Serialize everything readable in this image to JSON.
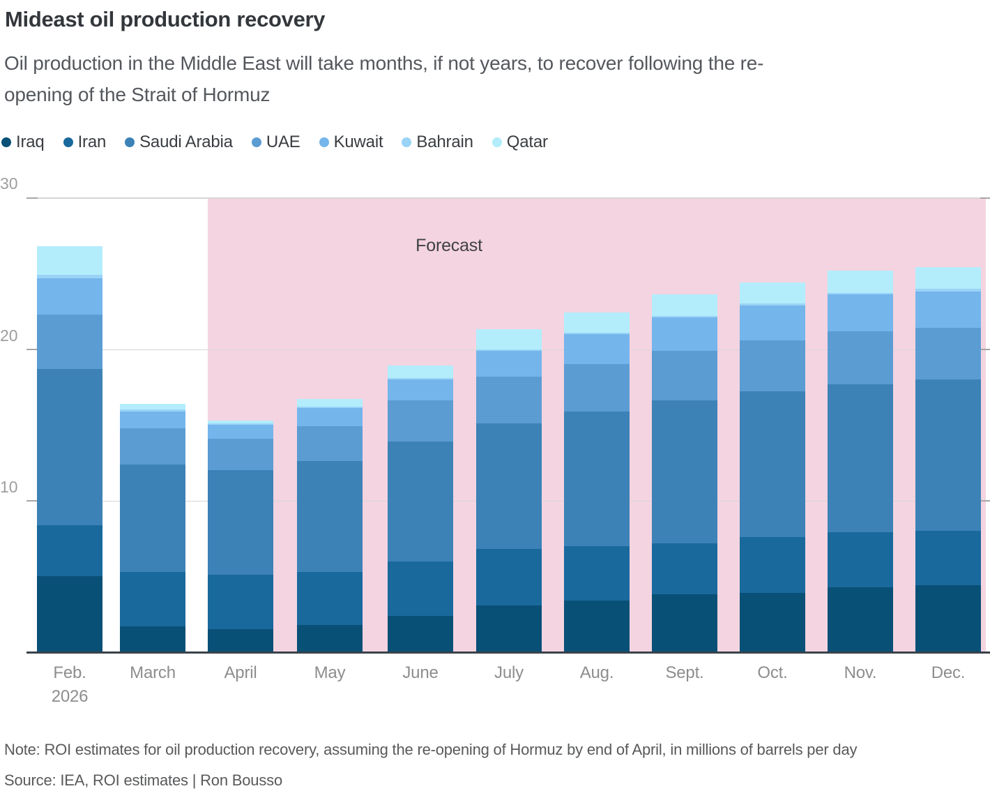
{
  "header": {
    "title": "Mideast oil production recovery",
    "subtitle_lines": [
      "Oil production in the Middle East will take months, if not years, to recover following the re-",
      "opening of the Strait of Hormuz"
    ]
  },
  "footer": {
    "note": "Note: ROI estimates for oil production recovery, assuming the re-opening of Hormuz by end of April, in millions of barrels per day",
    "source": "Source: IEA, ROI estimates | Ron Bousso"
  },
  "chart_data": {
    "type": "bar",
    "stacked": true,
    "unit": "millions of barrels per day",
    "categories": [
      "Feb. 2026",
      "March",
      "April",
      "May",
      "June",
      "July",
      "Aug.",
      "Sept.",
      "Oct.",
      "Nov.",
      "Dec."
    ],
    "tick_lines": [
      [
        "Feb.",
        "2026"
      ],
      [
        "March"
      ],
      [
        "April"
      ],
      [
        "May"
      ],
      [
        "June"
      ],
      [
        "July"
      ],
      [
        "Aug."
      ],
      [
        "Sept."
      ],
      [
        "Oct."
      ],
      [
        "Nov."
      ],
      [
        "Dec."
      ]
    ],
    "series": [
      {
        "name": "Iraq",
        "color": "#095077",
        "values": [
          5.0,
          1.7,
          1.5,
          1.8,
          2.4,
          3.1,
          3.4,
          3.8,
          3.9,
          4.3,
          4.4
        ]
      },
      {
        "name": "Iran",
        "color": "#19699d",
        "values": [
          3.4,
          3.6,
          3.6,
          3.5,
          3.6,
          3.7,
          3.6,
          3.4,
          3.7,
          3.6,
          3.6
        ]
      },
      {
        "name": "Saudi Arabia",
        "color": "#3c82b6",
        "values": [
          10.3,
          7.1,
          6.9,
          7.3,
          7.9,
          8.3,
          8.9,
          9.4,
          9.6,
          9.8,
          10.0
        ]
      },
      {
        "name": "UAE",
        "color": "#5b9cd3",
        "values": [
          3.6,
          2.4,
          2.1,
          2.3,
          2.7,
          3.1,
          3.1,
          3.3,
          3.4,
          3.5,
          3.4
        ]
      },
      {
        "name": "Kuwait",
        "color": "#74b5ec",
        "values": [
          2.4,
          1.1,
          0.9,
          1.2,
          1.4,
          1.7,
          2.0,
          2.2,
          2.3,
          2.4,
          2.4
        ]
      },
      {
        "name": "Bahrain",
        "color": "#99d3f6",
        "values": [
          0.2,
          0.1,
          0.1,
          0.1,
          0.1,
          0.1,
          0.1,
          0.1,
          0.1,
          0.1,
          0.2
        ]
      },
      {
        "name": "Qatar",
        "color": "#b3edfc",
        "values": [
          1.9,
          0.4,
          0.2,
          0.5,
          0.8,
          1.3,
          1.3,
          1.4,
          1.4,
          1.5,
          1.4
        ]
      }
    ],
    "totals": [
      26.8,
      16.4,
      15.3,
      16.7,
      18.9,
      21.3,
      22.4,
      23.6,
      24.4,
      25.2,
      25.4
    ],
    "ylim": [
      0,
      30
    ],
    "yticks": [
      10,
      20,
      30
    ],
    "grid": true,
    "legend_position": "top",
    "forecast": {
      "label": "Forecast",
      "start_category": "April",
      "region_color": "#f4d4e0"
    },
    "axis_colors": {
      "baseline": "#39424b",
      "gridline": "#d6d6d6",
      "tick_label": "#9e9e9e"
    }
  }
}
